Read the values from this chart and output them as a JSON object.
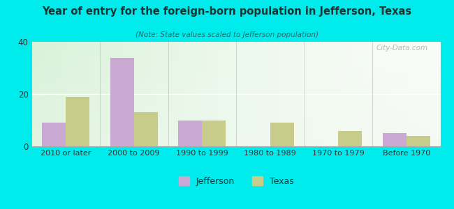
{
  "title": "Year of entry for the foreign-born population in Jefferson, Texas",
  "subtitle": "(Note: State values scaled to Jefferson population)",
  "categories": [
    "2010 or later",
    "2000 to 2009",
    "1990 to 1999",
    "1980 to 1989",
    "1970 to 1979",
    "Before 1970"
  ],
  "jefferson_values": [
    9,
    34,
    10,
    0,
    0,
    5
  ],
  "texas_values": [
    19,
    13,
    10,
    9,
    6,
    4
  ],
  "jefferson_color": "#c9a8d4",
  "texas_color": "#c8cc8a",
  "bg_outer": "#00ecec",
  "ylim": [
    0,
    40
  ],
  "yticks": [
    0,
    20,
    40
  ],
  "bar_width": 0.35,
  "watermark": "City-Data.com",
  "title_color": "#1a3333",
  "subtitle_color": "#336666",
  "tick_color": "#333333",
  "grid_color": "#ffffff"
}
